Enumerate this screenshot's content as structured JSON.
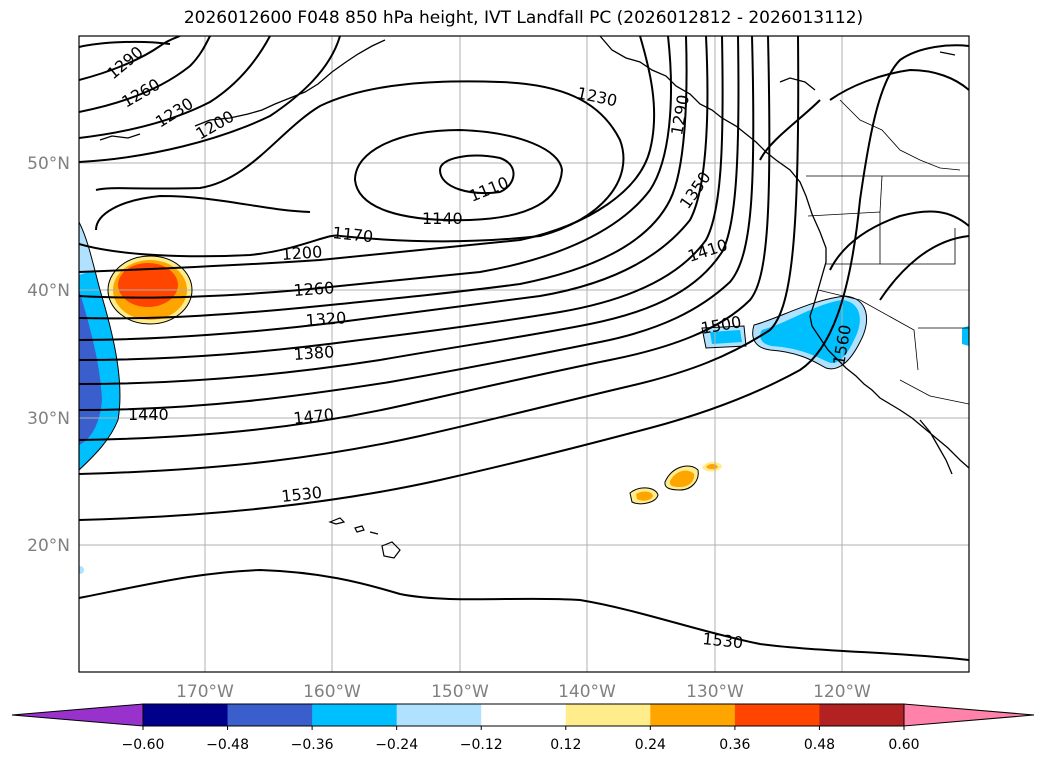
{
  "title": "2026012600 F048 850 hPa height, IVT Landfall PC (2026012812 - 2026013112)",
  "lat_labels": [
    "50°N",
    "40°N",
    "30°N",
    "20°N"
  ],
  "lon_labels": [
    "170°W",
    "160°W",
    "150°W",
    "140°W",
    "130°W",
    "120°W"
  ],
  "contour_labels": [
    "1290",
    "1260",
    "1230",
    "1200",
    "1230",
    "1110",
    "1140",
    "1170",
    "1200",
    "1260",
    "1320",
    "1380",
    "1440",
    "1470",
    "1530",
    "1530",
    "1350",
    "1410",
    "1500",
    "1560",
    "1290"
  ],
  "colorbar": {
    "ticks": [
      "−0.60",
      "−0.48",
      "−0.36",
      "−0.24",
      "−0.12",
      "0.12",
      "0.24",
      "0.36",
      "0.48",
      "0.60"
    ],
    "colors": [
      "#9932cc",
      "#00008b",
      "#3a5fcd",
      "#00bfff",
      "#b0e2ff",
      "#ffffff",
      "#ffec8b",
      "#ffa500",
      "#ff4500",
      "#b22222",
      "#ff82ab"
    ]
  }
}
